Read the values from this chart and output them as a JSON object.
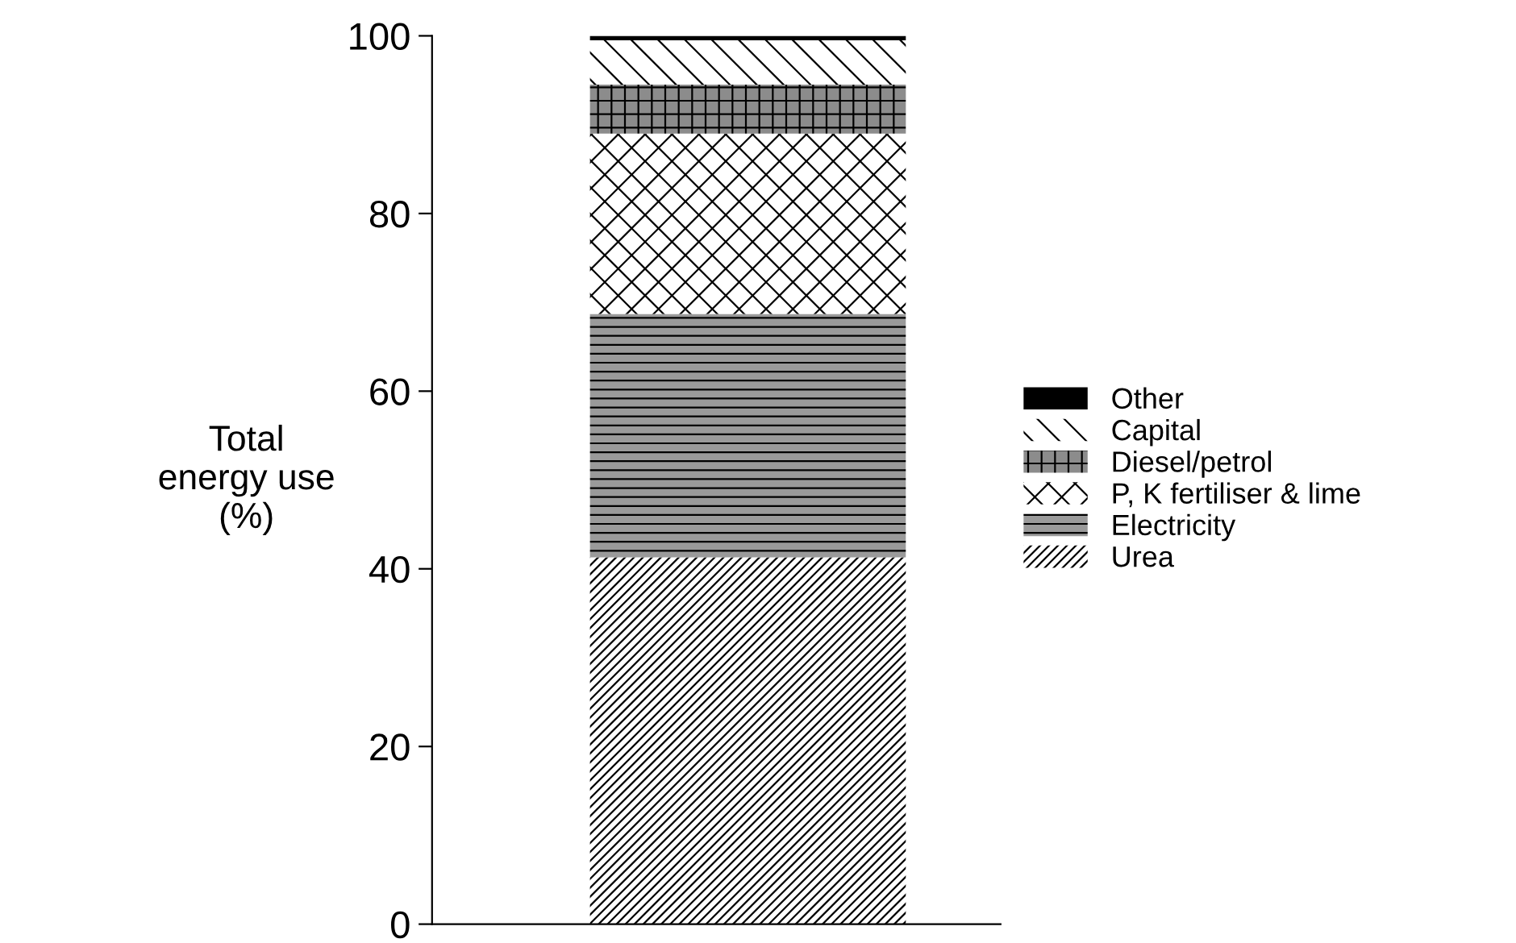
{
  "chart_data": {
    "type": "bar",
    "stacked": true,
    "ylabel": "Total\nenergy use\n(%)",
    "categories": [
      null
    ],
    "series": [
      {
        "name": "Urea",
        "color": "#ffffff",
        "values": [
          41.3
        ]
      },
      {
        "name": "Electricity",
        "color": "#9a9a9a",
        "values": [
          27.4
        ]
      },
      {
        "name": "P, K fertiliser & lime",
        "color": "#ffffff",
        "values": [
          20.3
        ]
      },
      {
        "name": "Diesel/petrol",
        "color": "#8c8c8c",
        "values": [
          5.5
        ]
      },
      {
        "name": "Capital",
        "color": "#ffffff",
        "values": [
          5.0
        ]
      },
      {
        "name": "Other",
        "color": "#000000",
        "values": [
          0.5
        ]
      }
    ],
    "ylim": [
      0,
      100
    ],
    "yticks": [
      0,
      20,
      40,
      60,
      80,
      100
    ],
    "grid": false,
    "legend": "right"
  }
}
